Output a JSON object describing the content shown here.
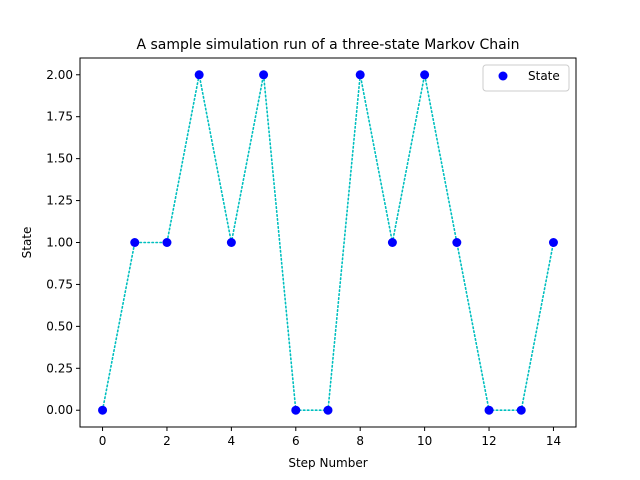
{
  "chart_data": {
    "type": "line",
    "title": "A sample simulation run of a three-state Markov Chain",
    "xlabel": "Step Number",
    "ylabel": "State",
    "x": [
      0,
      1,
      2,
      3,
      4,
      5,
      6,
      7,
      8,
      9,
      10,
      11,
      12,
      13,
      14
    ],
    "series": [
      {
        "name": "State",
        "values": [
          0,
          1,
          1,
          2,
          1,
          2,
          0,
          0,
          2,
          1,
          2,
          1,
          0,
          0,
          1
        ],
        "marker_color": "#0000ff",
        "line_color": "#00bfbf",
        "line_style": "dotted"
      }
    ],
    "xlim": [
      -0.7,
      14.7
    ],
    "ylim": [
      -0.1,
      2.1
    ],
    "xticks": [
      0,
      2,
      4,
      6,
      8,
      10,
      12,
      14
    ],
    "xtick_labels": [
      "0",
      "2",
      "4",
      "6",
      "8",
      "10",
      "12",
      "14"
    ],
    "yticks": [
      0,
      0.25,
      0.5,
      0.75,
      1.0,
      1.25,
      1.5,
      1.75,
      2.0
    ],
    "ytick_labels": [
      "0.00",
      "0.25",
      "0.50",
      "0.75",
      "1.00",
      "1.25",
      "1.50",
      "1.75",
      "2.00"
    ],
    "grid": false,
    "legend_position": "top-right"
  }
}
